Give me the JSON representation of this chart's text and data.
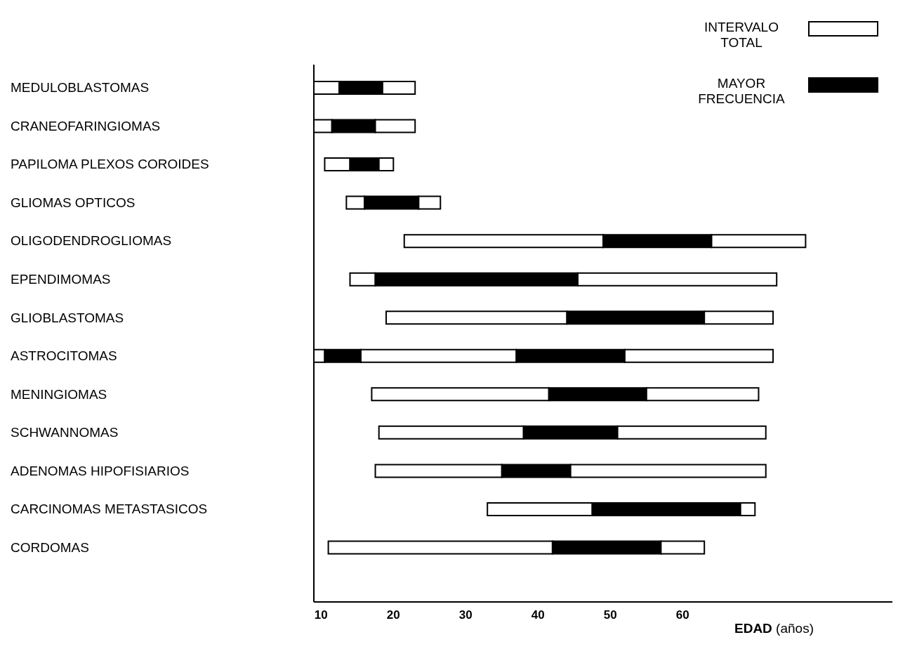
{
  "chart_data": {
    "type": "bar",
    "orientation": "horizontal",
    "xlabel": "EDAD (años)",
    "categories": [
      "MEDULOBLASTOMAS",
      "CRANEOFARINGIOMAS",
      "PAPILOMA PLEXOS COROIDES",
      "GLIOMAS OPTICOS",
      "OLIGODENDROGLIOMAS",
      "EPENDIMOMAS",
      "GLIOBLASTOMAS",
      "ASTROCITOMAS",
      "MENINGIOMAS",
      "SCHWANNOMAS",
      "ADENOMAS HIPOFISIARIOS",
      "CARCINOMAS METASTASICOS",
      "CORDOMAS"
    ],
    "series": [
      {
        "name": "INTERVALO TOTAL",
        "color": "#ffffff",
        "base": [
          9,
          9,
          10.5,
          13.5,
          21.5,
          14,
          19,
          9,
          17,
          18,
          17.5,
          33,
          11
        ],
        "values": [
          3.5,
          2.5,
          3.5,
          2.5,
          27.5,
          3.5,
          25,
          1.5,
          24.5,
          20,
          17.5,
          14.5,
          31
        ]
      },
      {
        "name": "MAYOR FRECUENCIA",
        "color": "#000000",
        "base": [
          12.5,
          11.5,
          14,
          16,
          49,
          17.5,
          44,
          10.5,
          41.5,
          38,
          35,
          47.5,
          42
        ],
        "values": [
          6,
          6,
          4,
          7.5,
          15,
          28,
          19,
          5,
          13.5,
          13,
          9.5,
          20.5,
          15
        ]
      },
      {
        "color": "#ffffff",
        "base": [
          18.5,
          17.5,
          18,
          23.5,
          64,
          45.5,
          63,
          15.5,
          55,
          51,
          44.5,
          68,
          57
        ],
        "values": [
          4.5,
          5.5,
          2,
          3,
          13,
          27.5,
          9.5,
          21.5,
          15.5,
          20.5,
          27,
          2,
          6
        ]
      },
      {
        "color": "#000000",
        "base": [
          null,
          null,
          null,
          null,
          null,
          null,
          null,
          37,
          null,
          null,
          null,
          null,
          null
        ],
        "values": [
          null,
          null,
          null,
          null,
          null,
          null,
          null,
          15,
          null,
          null,
          null,
          null,
          null
        ]
      },
      {
        "color": "#ffffff",
        "base": [
          null,
          null,
          null,
          null,
          null,
          null,
          null,
          52,
          null,
          null,
          null,
          null,
          null
        ],
        "values": [
          null,
          null,
          null,
          null,
          null,
          null,
          null,
          20.5,
          null,
          null,
          null,
          null,
          null
        ]
      }
    ],
    "xlim": [
      9,
      89
    ],
    "xticks": [
      10,
      20,
      30,
      40,
      50,
      60
    ],
    "legend": "top right"
  }
}
